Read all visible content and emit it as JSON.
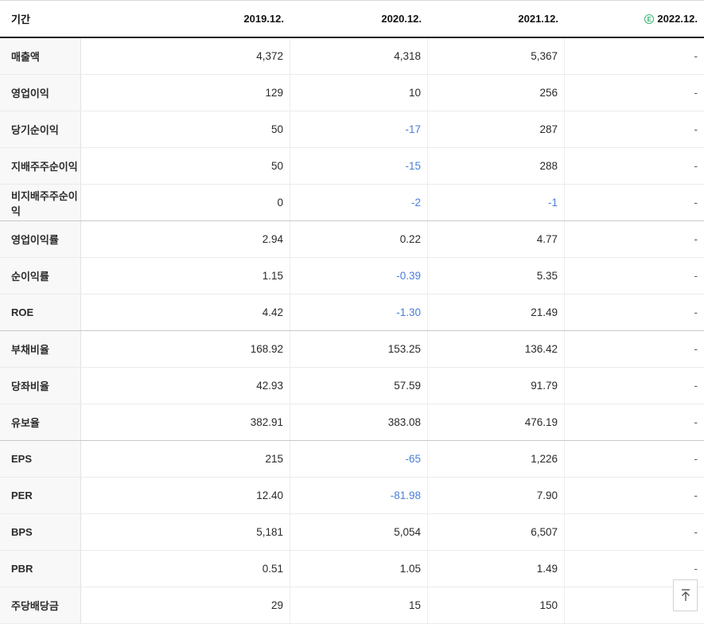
{
  "table": {
    "header": {
      "period_label": "기간",
      "columns": [
        {
          "label": "2019.12.",
          "estimate": false
        },
        {
          "label": "2020.12.",
          "estimate": false
        },
        {
          "label": "2021.12.",
          "estimate": false
        },
        {
          "label": "2022.12.",
          "estimate": true,
          "estimate_icon": "E"
        }
      ]
    },
    "rows": [
      {
        "label": "매출액",
        "values": [
          "4,372",
          "4,318",
          "5,367",
          "-"
        ]
      },
      {
        "label": "영업이익",
        "values": [
          "129",
          "10",
          "256",
          "-"
        ]
      },
      {
        "label": "당기순이익",
        "values": [
          "50",
          "-17",
          "287",
          "-"
        ]
      },
      {
        "label": "지배주주순이익",
        "values": [
          "50",
          "-15",
          "288",
          "-"
        ]
      },
      {
        "label": "비지배주주순이익",
        "values": [
          "0",
          "-2",
          "-1",
          "-"
        ]
      },
      {
        "label": "영업이익률",
        "values": [
          "2.94",
          "0.22",
          "4.77",
          "-"
        ]
      },
      {
        "label": "순이익률",
        "values": [
          "1.15",
          "-0.39",
          "5.35",
          "-"
        ]
      },
      {
        "label": "ROE",
        "values": [
          "4.42",
          "-1.30",
          "21.49",
          "-"
        ]
      },
      {
        "label": "부채비율",
        "values": [
          "168.92",
          "153.25",
          "136.42",
          "-"
        ]
      },
      {
        "label": "당좌비율",
        "values": [
          "42.93",
          "57.59",
          "91.79",
          "-"
        ]
      },
      {
        "label": "유보율",
        "values": [
          "382.91",
          "383.08",
          "476.19",
          "-"
        ]
      },
      {
        "label": "EPS",
        "values": [
          "215",
          "-65",
          "1,226",
          "-"
        ]
      },
      {
        "label": "PER",
        "values": [
          "12.40",
          "-81.98",
          "7.90",
          "-"
        ]
      },
      {
        "label": "BPS",
        "values": [
          "5,181",
          "5,054",
          "6,507",
          "-"
        ]
      },
      {
        "label": "PBR",
        "values": [
          "0.51",
          "1.05",
          "1.49",
          "-"
        ]
      },
      {
        "label": "주당배당금",
        "values": [
          "29",
          "15",
          "150",
          "-"
        ]
      }
    ],
    "group_separator_after_rows": [
      4,
      7,
      10
    ]
  },
  "colors": {
    "negative_value": "#4a7ed9",
    "estimate_green": "#3cb371",
    "header_border": "#1f1f1f",
    "label_cell_bg": "#f8f8f8"
  },
  "scroll_top_button": {
    "icon": "arrow-up-to-top"
  }
}
